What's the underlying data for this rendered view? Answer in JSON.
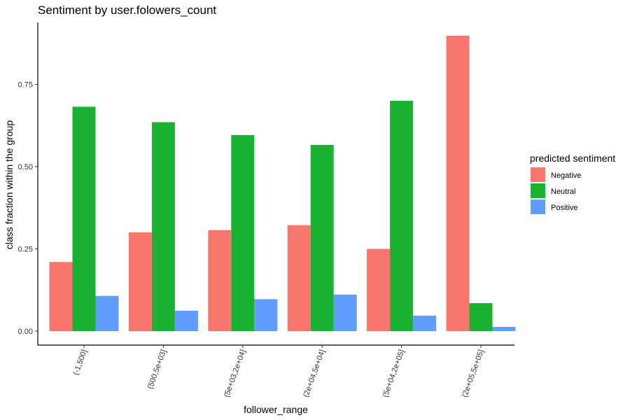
{
  "chart_data": {
    "type": "bar",
    "title": "Sentiment by user.folowers_count",
    "xlabel": "follower_range",
    "ylabel": "class fraction within the group",
    "categories": [
      "(-1,500]",
      "(500,5e+03]",
      "(5e+03,2e+04]",
      "(2e+04,5e+04]",
      "(5e+04,2e+05]",
      "(2e+05,5e+05]"
    ],
    "series": [
      {
        "name": "Negative",
        "color": "#F8766D",
        "values": [
          0.21,
          0.3,
          0.307,
          0.322,
          0.25,
          0.898
        ]
      },
      {
        "name": "Neutral",
        "color": "#1AB232",
        "values": [
          0.682,
          0.635,
          0.596,
          0.566,
          0.7,
          0.085
        ]
      },
      {
        "name": "Positive",
        "color": "#619CFF",
        "values": [
          0.107,
          0.062,
          0.097,
          0.111,
          0.047,
          0.013
        ]
      }
    ],
    "ylim": [
      0,
      0.945
    ],
    "yticks": [
      0,
      0.25,
      0.5,
      0.75
    ],
    "ytick_labels": [
      "0.00",
      "0.25",
      "0.50",
      "0.75"
    ],
    "grid": false,
    "legend": {
      "title": "predicted sentiment",
      "position": "right"
    }
  }
}
